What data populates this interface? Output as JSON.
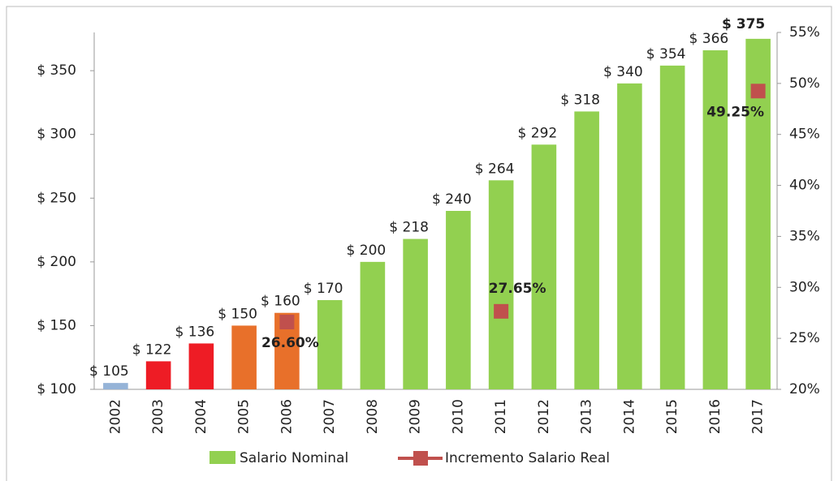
{
  "chart_data": {
    "type": "bar",
    "categories": [
      "2002",
      "2003",
      "2004",
      "2005",
      "2006",
      "2007",
      "2008",
      "2009",
      "2010",
      "2011",
      "2012",
      "2013",
      "2014",
      "2015",
      "2016",
      "2017"
    ],
    "series": [
      {
        "name": "Salario Nominal",
        "color": "#92d050",
        "colors": [
          "#95b3d7",
          "#ee1c25",
          "#ee1c25",
          "#e8702a",
          "#e8702a",
          "#92d050",
          "#92d050",
          "#92d050",
          "#92d050",
          "#92d050",
          "#92d050",
          "#92d050",
          "#92d050",
          "#92d050",
          "#92d050",
          "#92d050"
        ],
        "values": [
          105,
          122,
          136,
          150,
          160,
          170,
          200,
          218,
          240,
          264,
          292,
          318,
          340,
          354,
          366,
          375
        ],
        "value_labels": [
          "$ 105",
          "$ 122",
          "$ 136",
          "$ 150",
          "$ 160",
          "$ 170",
          "$ 200",
          "$ 218",
          "$ 240",
          "$ 264",
          "$ 292",
          "$ 318",
          "$ 340",
          "$ 354",
          "$ 366",
          "$ 375"
        ]
      },
      {
        "name": "Incremento Salario Real",
        "color": "#c0504d",
        "axis": "y2",
        "values": [
          null,
          null,
          null,
          null,
          26.6,
          null,
          null,
          null,
          null,
          27.65,
          null,
          null,
          null,
          null,
          null,
          49.25
        ],
        "value_labels": [
          null,
          null,
          null,
          null,
          "26.60%",
          null,
          null,
          null,
          null,
          "27.65%",
          null,
          null,
          null,
          null,
          null,
          "49.25%"
        ]
      }
    ],
    "ylim": [
      100,
      380
    ],
    "yticks": [
      {
        "value": 100,
        "label": "$ 100"
      },
      {
        "value": 150,
        "label": "$ 150"
      },
      {
        "value": 200,
        "label": "$ 200"
      },
      {
        "value": 250,
        "label": "$ 250"
      },
      {
        "value": 300,
        "label": "$ 300"
      },
      {
        "value": 350,
        "label": "$ 350"
      }
    ],
    "y2lim": [
      20,
      55
    ],
    "y2ticks": [
      {
        "value": 20,
        "label": "20%"
      },
      {
        "value": 25,
        "label": "25%"
      },
      {
        "value": 30,
        "label": "30%"
      },
      {
        "value": 35,
        "label": "35%"
      },
      {
        "value": 40,
        "label": "40%"
      },
      {
        "value": 45,
        "label": "45%"
      },
      {
        "value": 50,
        "label": "50%"
      },
      {
        "value": 55,
        "label": "55%"
      }
    ],
    "legend": "bottom"
  }
}
